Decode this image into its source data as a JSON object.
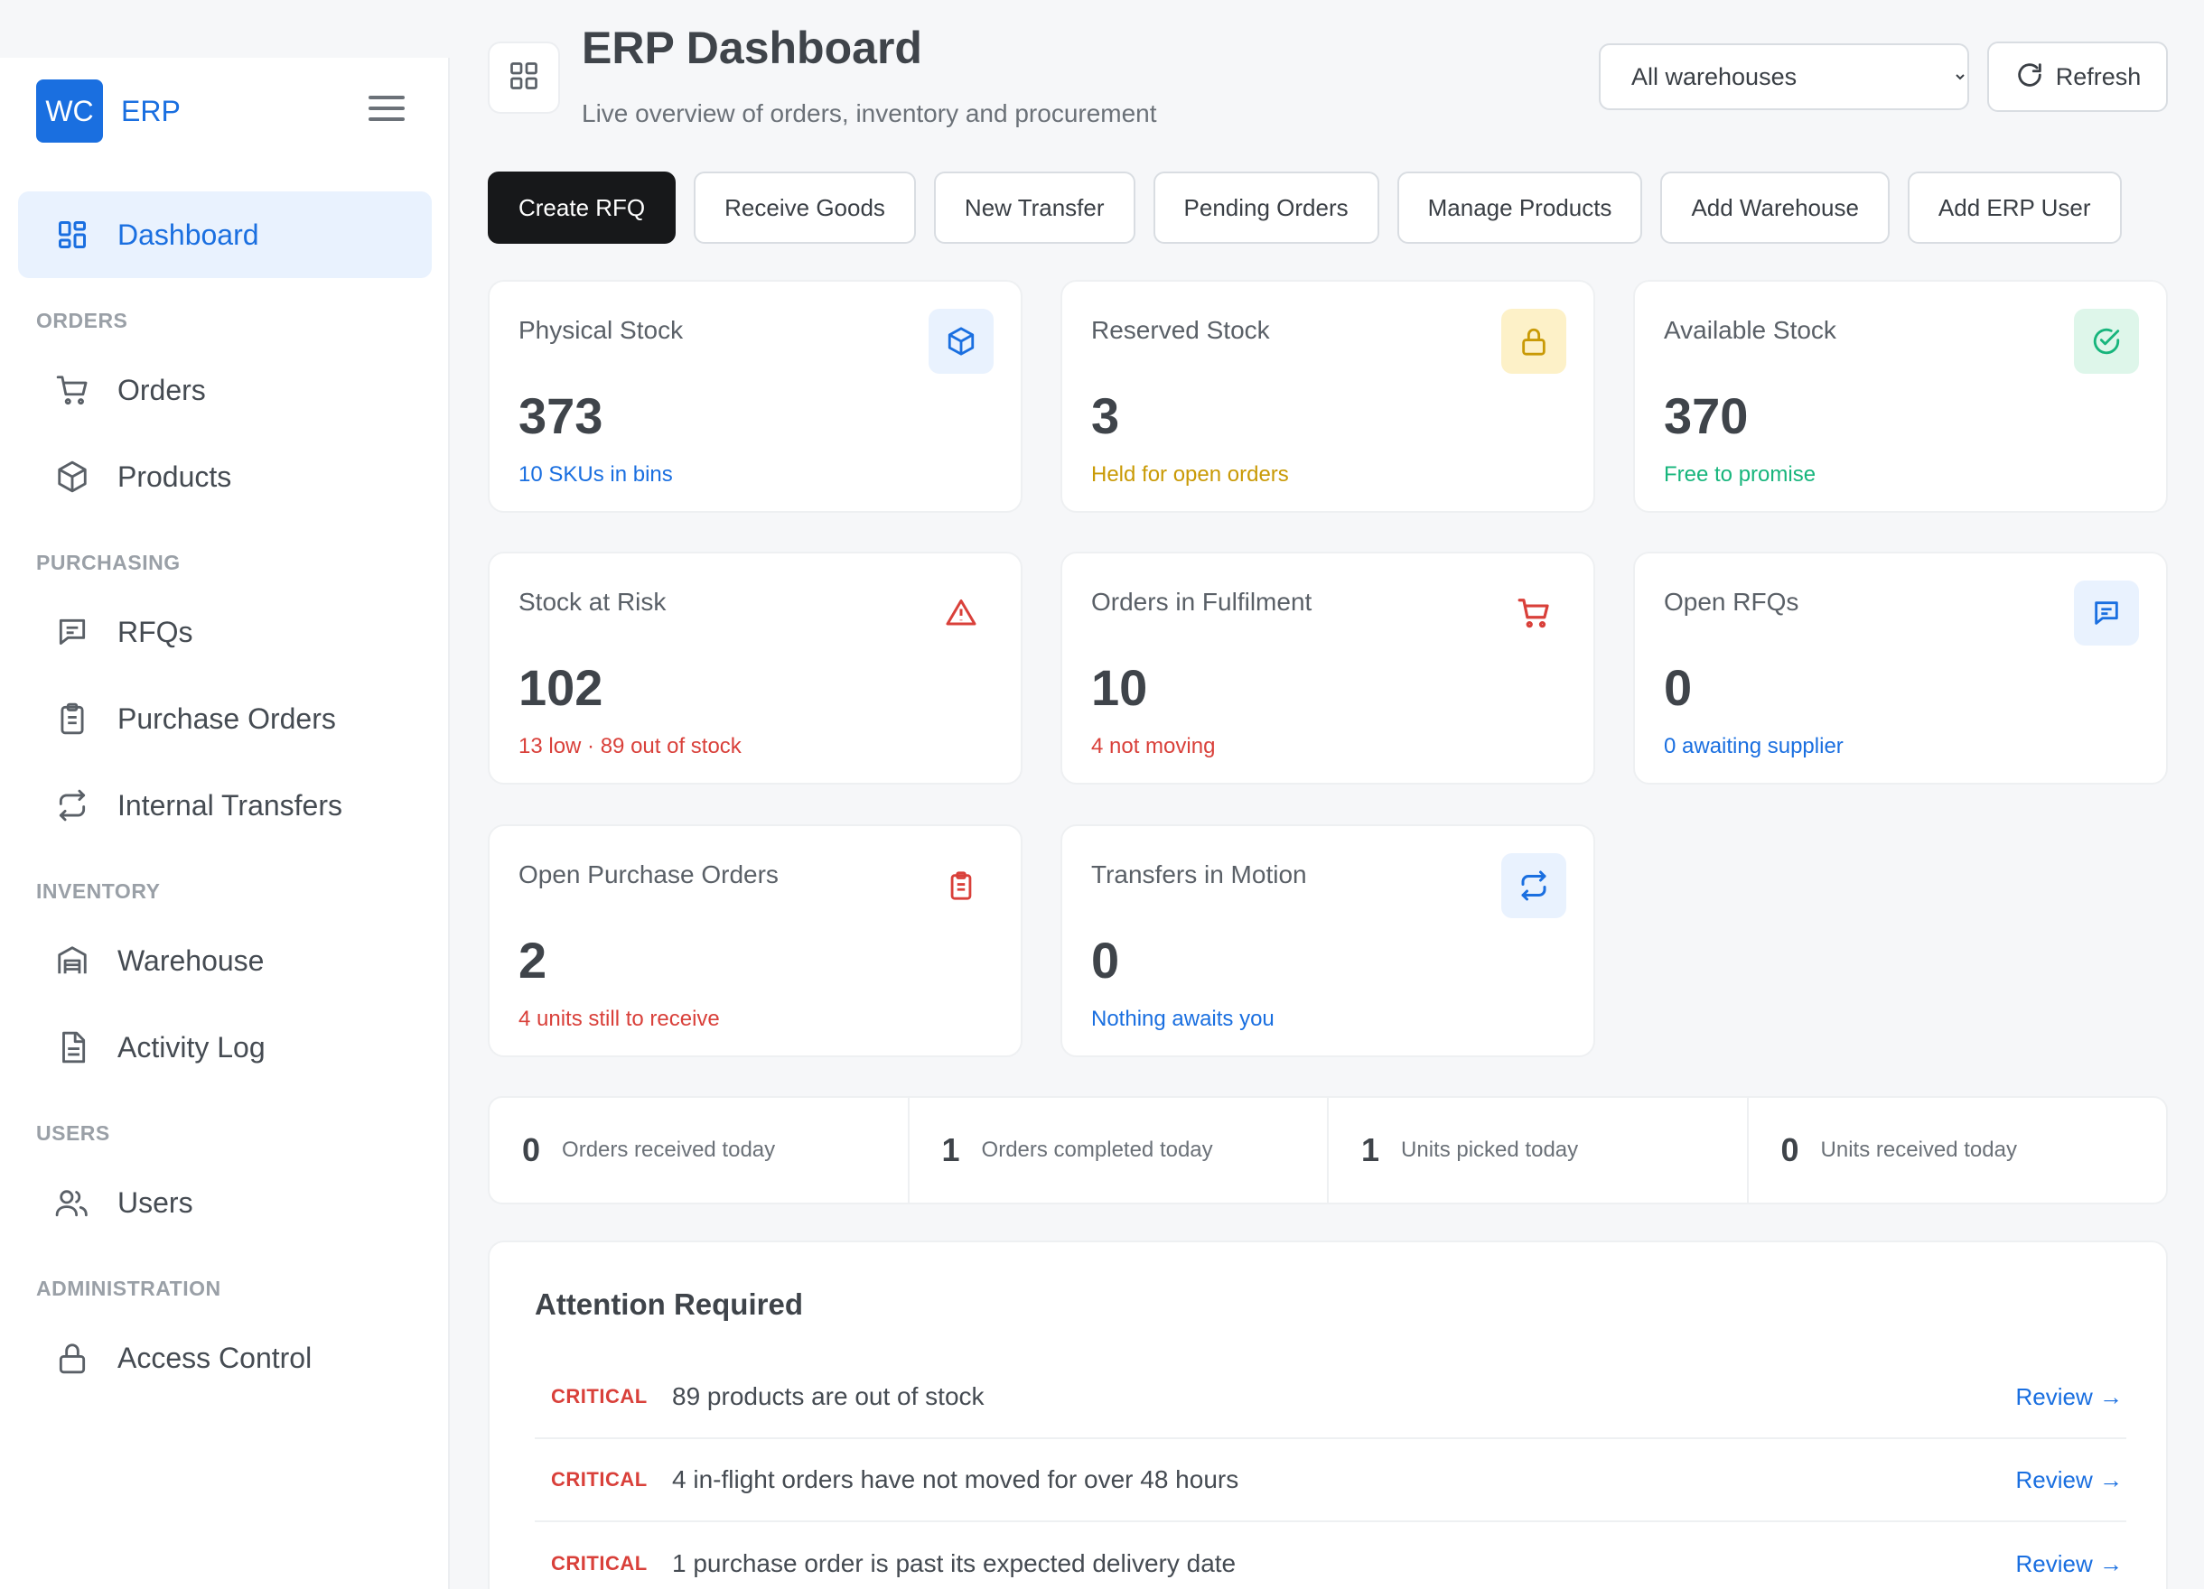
{
  "brand": {
    "logo_text": "WC",
    "name": "ERP"
  },
  "sidebar": {
    "active": {
      "label": "Dashboard"
    },
    "sections": {
      "orders": "ORDERS",
      "purchasing": "PURCHASING",
      "inventory": "INVENTORY",
      "users": "USERS",
      "administration": "ADMINISTRATION"
    },
    "items": {
      "orders": "Orders",
      "products": "Products",
      "rfqs": "RFQs",
      "purchase_orders": "Purchase Orders",
      "internal_transfers": "Internal Transfers",
      "warehouse": "Warehouse",
      "activity_log": "Activity Log",
      "users": "Users",
      "access_control": "Access Control"
    }
  },
  "header": {
    "title": "ERP Dashboard",
    "subtitle": "Live overview of orders, inventory and procurement",
    "warehouse_select": "All warehouses",
    "refresh_label": "Refresh"
  },
  "actions": {
    "create_rfq": "Create RFQ",
    "receive_goods": "Receive Goods",
    "new_transfer": "New Transfer",
    "pending_orders": "Pending Orders",
    "manage_products": "Manage Products",
    "add_warehouse": "Add Warehouse",
    "add_erp_user": "Add ERP User"
  },
  "cards": {
    "physical_stock": {
      "label": "Physical Stock",
      "value": "373",
      "sub": "10 SKUs in bins",
      "icon": "box-icon",
      "color": "#1a6fe0"
    },
    "reserved_stock": {
      "label": "Reserved Stock",
      "value": "3",
      "sub": "Held for open orders",
      "icon": "lock-icon",
      "color": "#c99a06"
    },
    "available_stock": {
      "label": "Available Stock",
      "value": "370",
      "sub": "Free to promise",
      "icon": "check-circle-icon",
      "color": "#17b57c"
    },
    "stock_at_risk": {
      "label": "Stock at Risk",
      "value": "102",
      "sub": "13 low · 89 out of stock",
      "icon": "warning-icon",
      "color": "#d9403a"
    },
    "orders_in_fulfilment": {
      "label": "Orders in Fulfilment",
      "value": "10",
      "sub": "4 not moving",
      "icon": "cart-icon",
      "color": "#d9403a"
    },
    "open_rfqs": {
      "label": "Open RFQs",
      "value": "0",
      "sub": "0 awaiting supplier",
      "icon": "chat-icon",
      "color": "#1a6fe0"
    },
    "open_purchase_orders": {
      "label": "Open Purchase Orders",
      "value": "2",
      "sub": "4 units still to receive",
      "icon": "clipboard-icon",
      "color": "#d9403a"
    },
    "transfers_in_motion": {
      "label": "Transfers in Motion",
      "value": "0",
      "sub": "Nothing awaits you",
      "icon": "transfer-icon",
      "color": "#1a6fe0"
    }
  },
  "today": {
    "orders_received": {
      "value": "0",
      "label": "Orders received today"
    },
    "orders_completed": {
      "value": "1",
      "label": "Orders completed today"
    },
    "units_picked": {
      "value": "1",
      "label": "Units picked today"
    },
    "units_received": {
      "value": "0",
      "label": "Units received today"
    }
  },
  "attention": {
    "title": "Attention Required",
    "rows": [
      {
        "severity": "CRITICAL",
        "message": "89 products are out of stock",
        "action": "Review →"
      },
      {
        "severity": "CRITICAL",
        "message": "4 in-flight orders have not moved for over 48 hours",
        "action": "Review →"
      },
      {
        "severity": "CRITICAL",
        "message": "1 purchase order is past its expected delivery date",
        "action": "Review →"
      }
    ]
  }
}
